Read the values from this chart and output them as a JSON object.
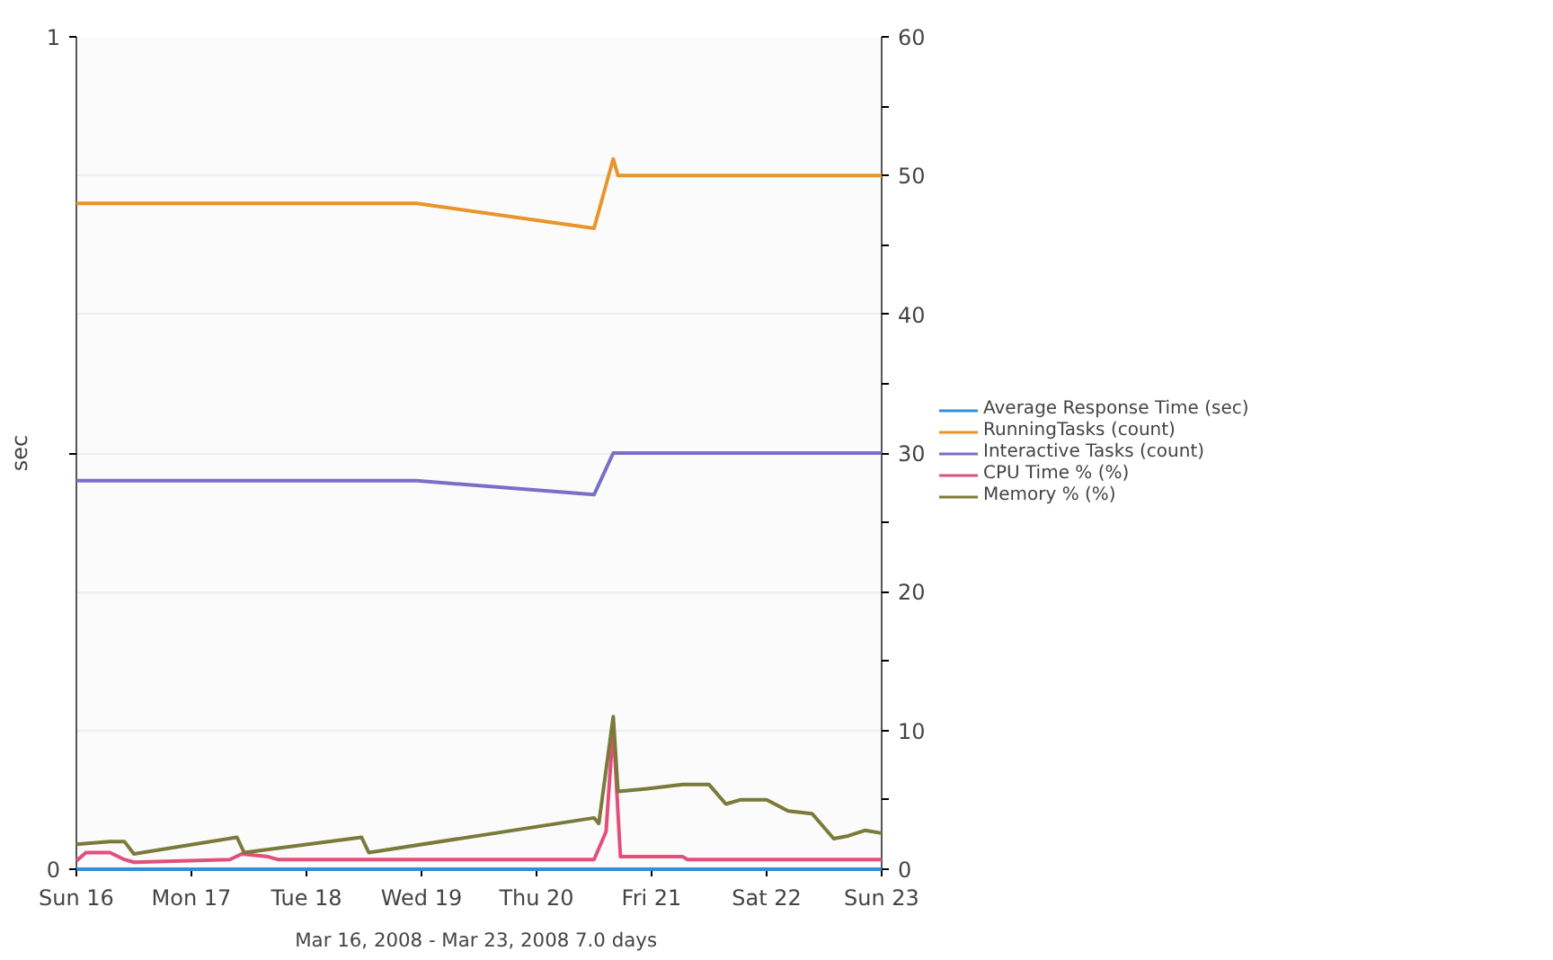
{
  "chart_data": {
    "type": "line",
    "ylabel": "sec",
    "annotations": [
      "Mar 16, 2008 - Mar 23, 2008  7.0 days"
    ],
    "xlim": [
      "2008-03-16T00:00",
      "2008-03-23T00:00"
    ],
    "xticks": [
      {
        "value": "2008-03-16T00:00",
        "label": "Sun 16"
      },
      {
        "value": "2008-03-17T00:00",
        "label": "Mon 17"
      },
      {
        "value": "2008-03-18T00:00",
        "label": "Tue 18"
      },
      {
        "value": "2008-03-19T00:00",
        "label": "Wed 19"
      },
      {
        "value": "2008-03-20T00:00",
        "label": "Thu 20"
      },
      {
        "value": "2008-03-21T00:00",
        "label": "Fri 21"
      },
      {
        "value": "2008-03-22T00:00",
        "label": "Sat 22"
      },
      {
        "value": "2008-03-23T00:00",
        "label": "Sun 23"
      }
    ],
    "ylim": [
      0,
      1
    ],
    "yticks": [
      0,
      {
        "value": 0.5,
        "label": null
      },
      1
    ],
    "y2lim": [
      0,
      60
    ],
    "y2ticks": [
      0,
      {
        "value": 5,
        "label": null
      },
      10,
      {
        "value": 15,
        "label": null
      },
      20,
      {
        "value": 25,
        "label": null
      },
      30,
      {
        "value": 35,
        "label": null
      },
      40,
      {
        "value": 45,
        "label": null
      },
      50,
      {
        "value": 55,
        "label": null
      },
      60
    ],
    "grid": "y",
    "legend": "right",
    "series": [
      {
        "name": "Average Response Time (sec)",
        "color": "#2f8fd8",
        "x": [
          "2008-03-16T00:00",
          "2008-03-23T00:00"
        ],
        "values": [
          0,
          0
        ]
      },
      {
        "name": "RunningTasks (count)",
        "color": "#e8952a",
        "axis": "y2",
        "x": [
          "2008-03-16T00:00",
          "2008-03-18T23:00",
          "2008-03-20T12:00",
          "2008-03-20T16:00",
          "2008-03-20T17:00",
          "2008-03-23T00:00"
        ],
        "values": [
          48,
          48,
          46.2,
          51.2,
          50,
          50
        ]
      },
      {
        "name": "Interactive Tasks (count)",
        "color": "#7a6fc8",
        "axis": "y2",
        "x": [
          "2008-03-16T00:00",
          "2008-03-18T23:00",
          "2008-03-20T12:00",
          "2008-03-20T16:00",
          "2008-03-23T00:00"
        ],
        "values": [
          28,
          28,
          27,
          30,
          30
        ]
      },
      {
        "name": "CPU Time % (%)",
        "color": "#e0507a",
        "axis": "y2",
        "x": [
          "2008-03-16T00:00",
          "2008-03-16T02:00",
          "2008-03-16T07:00",
          "2008-03-16T10:00",
          "2008-03-16T12:00",
          "2008-03-17T08:00",
          "2008-03-17T10:30",
          "2008-03-17T16:00",
          "2008-03-17T18:00",
          "2008-03-20T12:00",
          "2008-03-20T14:30",
          "2008-03-20T16:00",
          "2008-03-20T17:30",
          "2008-03-21T06:30",
          "2008-03-21T07:30",
          "2008-03-23T00:00"
        ],
        "values": [
          0.6,
          1.2,
          1.2,
          0.7,
          0.5,
          0.7,
          1.1,
          0.9,
          0.7,
          0.7,
          2.7,
          10.3,
          0.9,
          0.9,
          0.7,
          0.7
        ]
      },
      {
        "name": "Memory % (%)",
        "color": "#7a7a3a",
        "axis": "y2",
        "x": [
          "2008-03-16T00:00",
          "2008-03-16T07:00",
          "2008-03-16T10:00",
          "2008-03-16T12:00",
          "2008-03-17T09:30",
          "2008-03-17T11:00",
          "2008-03-18T11:30",
          "2008-03-18T13:00",
          "2008-03-20T12:00",
          "2008-03-20T13:00",
          "2008-03-20T16:00",
          "2008-03-20T17:00",
          "2008-03-20T23:00",
          "2008-03-21T06:30",
          "2008-03-21T12:00",
          "2008-03-21T15:30",
          "2008-03-21T18:30",
          "2008-03-22T00:00",
          "2008-03-22T04:30",
          "2008-03-22T09:30",
          "2008-03-22T14:00",
          "2008-03-22T17:00",
          "2008-03-22T20:30",
          "2008-03-23T00:00"
        ],
        "values": [
          1.8,
          2.0,
          2.0,
          1.1,
          2.3,
          1.2,
          2.3,
          1.2,
          3.7,
          3.3,
          11.0,
          5.6,
          5.8,
          6.1,
          6.1,
          4.7,
          5.0,
          5.0,
          4.2,
          4.0,
          2.2,
          2.4,
          2.8,
          2.6
        ]
      }
    ]
  }
}
